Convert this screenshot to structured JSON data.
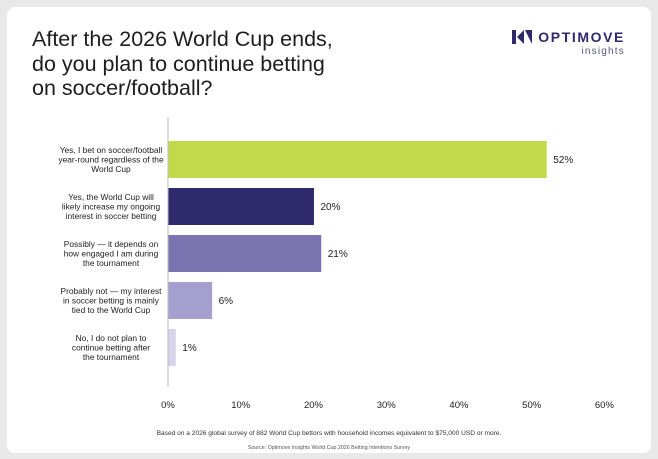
{
  "title_lines": [
    "After the 2026 World Cup ends,",
    "do you plan to continue betting",
    "on soccer/football?"
  ],
  "brand": {
    "name": "OPTIMOVE",
    "sub": "insights",
    "icon": "optimove-logo-icon",
    "color": "#2d2a6b"
  },
  "chart_data": {
    "type": "bar",
    "orientation": "horizontal",
    "categories": [
      [
        "Yes, I bet on soccer/football",
        "year-round regardless of the",
        "World Cup"
      ],
      [
        "Yes, the World Cup will",
        "likely increase my ongoing",
        "interest in soccer betting"
      ],
      [
        "Possibly — it depends on",
        "how engaged I am during",
        "the tournament"
      ],
      [
        "Probably not — my interest",
        "in soccer betting is mainly",
        "tied to the World Cup"
      ],
      [
        "No, I do not plan to",
        "continue betting after",
        "the tournament"
      ]
    ],
    "values": [
      52,
      20,
      21,
      6,
      1
    ],
    "value_labels": [
      "52%",
      "20%",
      "21%",
      "6%",
      "1%"
    ],
    "colors": [
      "#c2d94c",
      "#2e2a6b",
      "#7b72b0",
      "#a59fd0",
      "#d7d3ea"
    ],
    "x_ticks": [
      "0%",
      "10%",
      "20%",
      "30%",
      "40%",
      "50%",
      "60%"
    ],
    "xlim": [
      0,
      60
    ],
    "grid": false
  },
  "footnote": "Based on a 2026 global survey of 882 World Cup bettors with household incomes equivalent to $75,000 USD or more.",
  "source": "Source: Optimove Insights World Cup 2026 Betting Intentions Survey"
}
